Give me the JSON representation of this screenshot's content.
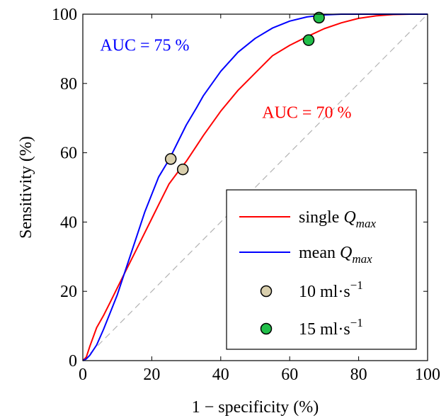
{
  "chart_data": {
    "type": "line",
    "xlabel": "1 − specificity (%)",
    "ylabel": "Sensitivity (%)",
    "xlim": [
      0,
      100
    ],
    "ylim": [
      0,
      100
    ],
    "xticks": [
      0,
      20,
      40,
      60,
      80,
      100
    ],
    "yticks": [
      0,
      20,
      40,
      60,
      80,
      100
    ],
    "grid": false,
    "legend_position": "bottom-right",
    "reference_line": {
      "points": [
        [
          0,
          0
        ],
        [
          100,
          100
        ]
      ],
      "color": "#b3b3b3",
      "style": "dashed"
    },
    "series": [
      {
        "name": "single Q_max",
        "legend_text": "single",
        "legend_italic": "Q",
        "legend_sub": "max",
        "color": "#ff0000",
        "x": [
          0,
          1,
          2,
          4,
          6,
          8,
          10,
          12,
          15,
          18,
          20,
          22,
          25,
          28,
          30,
          33,
          35,
          40,
          45,
          50,
          55,
          60,
          65,
          70,
          75,
          80,
          85,
          90,
          95,
          100
        ],
        "y": [
          0,
          1,
          4,
          9.5,
          13,
          17,
          21,
          25,
          31,
          37,
          41,
          45,
          51,
          55,
          57.5,
          62,
          65,
          72,
          78,
          83,
          88,
          91,
          93.5,
          95.8,
          97.5,
          98.8,
          99.5,
          99.9,
          100,
          100
        ]
      },
      {
        "name": "mean Q_max",
        "legend_text": "mean",
        "legend_italic": "Q",
        "legend_sub": "max",
        "color": "#0000ff",
        "x": [
          0,
          1,
          2,
          4,
          6,
          8,
          10,
          12,
          15,
          18,
          20,
          22,
          25,
          28,
          30,
          33,
          35,
          40,
          45,
          50,
          55,
          60,
          65,
          70,
          75,
          80,
          85,
          90,
          95,
          100
        ],
        "y": [
          0,
          0.5,
          1.5,
          4.5,
          9,
          14,
          19,
          25,
          34,
          43,
          48,
          53,
          58,
          64,
          68,
          73,
          76.5,
          83.5,
          89,
          93,
          96,
          98,
          99.2,
          99.8,
          100,
          100,
          100,
          100,
          100,
          100
        ]
      }
    ],
    "markers": [
      {
        "name": "10 ml·s⁻¹",
        "legend_text": "10 ml·s",
        "legend_sup": "−1",
        "fill": "#d9cfad",
        "points": [
          [
            25.5,
            58.2
          ],
          [
            29,
            55.2
          ]
        ]
      },
      {
        "name": "15 ml·s⁻¹",
        "legend_text": "15 ml·s",
        "legend_sup": "−1",
        "fill": "#22bf4a",
        "points": [
          [
            65.5,
            92.5
          ],
          [
            68.5,
            99
          ]
        ]
      }
    ],
    "annotations": [
      {
        "text": "AUC = 75 %",
        "color": "#0000ff",
        "x": 5,
        "y": 89.5
      },
      {
        "text": "AUC = 70 %",
        "color": "#ff0000",
        "x": 52,
        "y": 70
      }
    ]
  }
}
